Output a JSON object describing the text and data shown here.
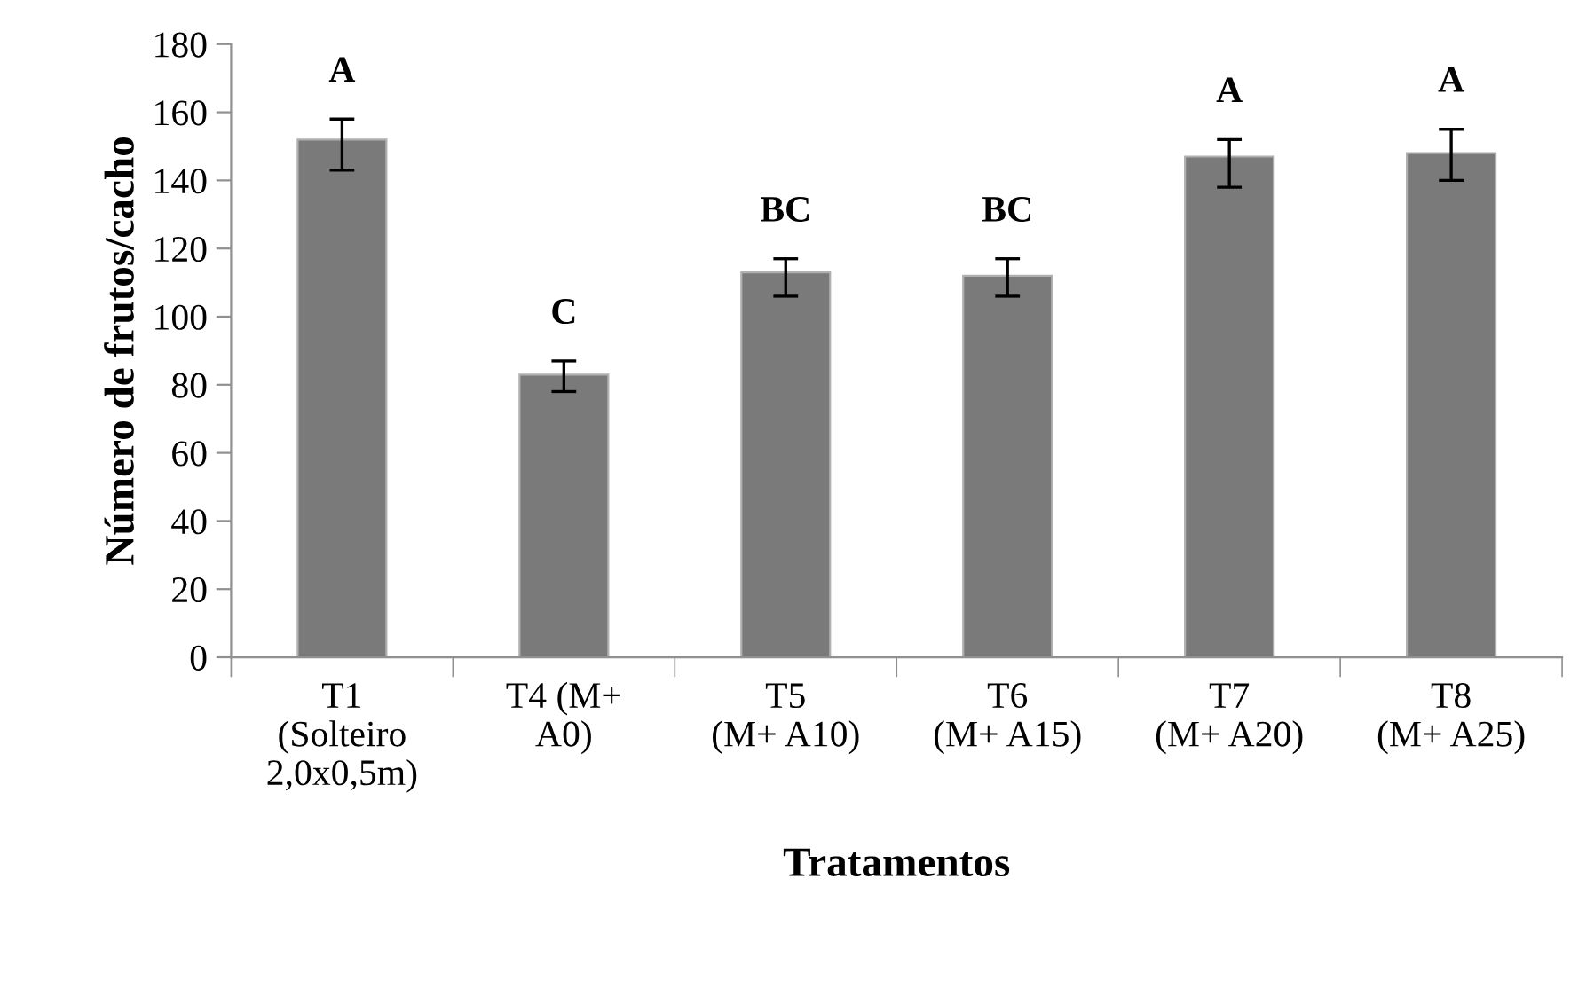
{
  "chart_data": {
    "type": "bar",
    "xlabel": "Tratamentos",
    "ylabel": "Número de frutos/cacho",
    "categories": [
      "T1\n(Solteiro\n2,0x0,5m)",
      "T4 (M+\nA0)",
      "T5\n(M+ A10)",
      "T6\n(M+ A15)",
      "T7\n(M+ A20)",
      "T8\n(M+ A25)"
    ],
    "values": [
      152,
      83,
      113,
      112,
      147,
      148
    ],
    "errors": [
      [
        143,
        158
      ],
      [
        78,
        87
      ],
      [
        106,
        117
      ],
      [
        106,
        117
      ],
      [
        138,
        152
      ],
      [
        140,
        155
      ]
    ],
    "color": "#7a7a7a",
    "ylim": [
      0,
      180
    ],
    "yticks": [
      0,
      20,
      40,
      60,
      80,
      100,
      120,
      140,
      160,
      180
    ],
    "grid": false,
    "annotations": [
      "A",
      "C",
      "BC",
      "BC",
      "A",
      "A"
    ]
  }
}
